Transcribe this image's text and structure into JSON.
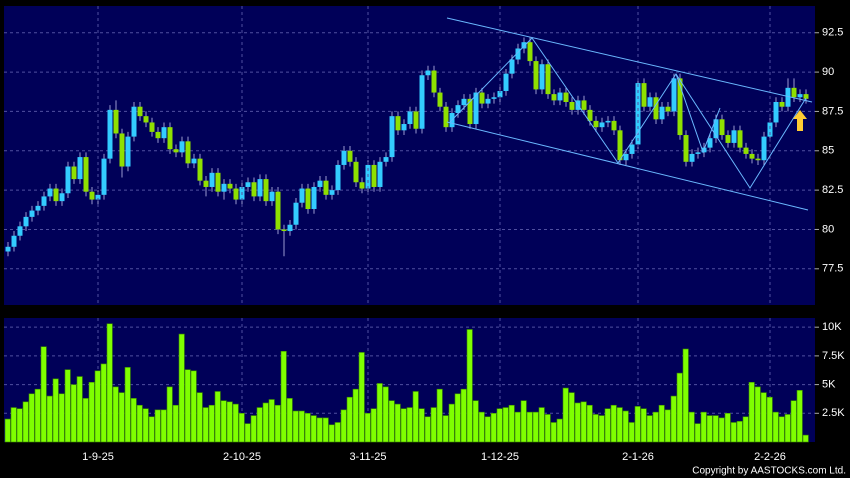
{
  "chart_data": [
    {
      "type": "candlestick",
      "up_color": "#33ccff",
      "down_color": "#8fe000",
      "open": [
        78.6,
        78.9,
        79.6,
        80.2,
        80.8,
        81.2,
        81.5,
        82.1,
        82.6,
        81.8,
        82.3,
        84.0,
        83.2,
        84.6,
        82.4,
        81.9,
        82.2,
        84.5,
        87.6,
        86.1,
        84.0,
        85.9,
        87.8,
        87.2,
        86.8,
        86.2,
        85.8,
        86.5,
        85.1,
        84.9,
        85.6,
        84.2,
        84.5,
        83.1,
        82.7,
        83.6,
        82.4,
        82.9,
        82.6,
        81.9,
        82.7,
        83.0,
        82.1,
        83.2,
        81.8,
        82.4,
        80.0,
        79.9,
        80.3,
        81.7,
        82.6,
        81.3,
        82.7,
        83.1,
        82.2,
        82.5,
        84.1,
        85.0,
        84.3,
        83.0,
        82.6,
        84.1,
        82.7,
        84.3,
        84.6,
        87.2,
        86.3,
        86.7,
        87.5,
        86.4,
        89.8,
        90.1,
        88.7,
        87.8,
        86.5,
        87.4,
        87.9,
        88.3,
        86.7,
        88.7,
        88.0,
        88.3,
        88.4,
        88.8,
        89.9,
        90.8,
        91.5,
        91.9,
        90.7,
        88.9,
        90.5,
        88.6,
        88.2,
        88.7,
        88.1,
        87.6,
        88.2,
        87.6,
        86.9,
        86.5,
        86.8,
        86.9,
        86.3,
        84.4,
        84.8,
        85.4,
        89.3,
        87.8,
        88.4,
        87.0,
        87.8,
        87.5,
        89.6,
        86.0,
        84.3,
        84.8,
        84.9,
        85.2,
        85.8,
        87.0,
        86.0,
        85.5,
        86.3,
        85.2,
        84.8,
        84.5,
        84.4,
        85.9,
        86.8,
        88.1,
        87.8,
        89.0,
        88.4,
        88.6
      ],
      "high": [
        79.2,
        79.9,
        80.5,
        81.1,
        81.5,
        81.8,
        82.4,
        82.9,
        82.9,
        82.6,
        84.3,
        84.3,
        84.9,
        84.9,
        82.7,
        82.5,
        84.8,
        87.9,
        88.2,
        86.4,
        86.2,
        88.1,
        88.1,
        87.5,
        87.1,
        86.5,
        86.8,
        86.8,
        85.4,
        85.9,
        85.9,
        84.8,
        84.8,
        83.4,
        83.9,
        83.9,
        83.2,
        83.2,
        82.9,
        83.0,
        83.3,
        83.3,
        83.5,
        83.5,
        82.7,
        82.7,
        80.3,
        80.6,
        82.0,
        82.9,
        82.9,
        83.0,
        83.4,
        83.4,
        82.8,
        84.4,
        85.3,
        85.3,
        84.6,
        83.3,
        84.4,
        84.4,
        84.6,
        84.9,
        87.5,
        87.5,
        87.0,
        87.8,
        87.8,
        90.1,
        90.4,
        90.4,
        89.0,
        88.1,
        87.7,
        88.2,
        88.6,
        88.6,
        89.0,
        89.0,
        88.6,
        88.7,
        89.1,
        90.2,
        91.1,
        91.8,
        92.2,
        92.2,
        91.0,
        90.8,
        90.8,
        88.9,
        89.0,
        89.0,
        88.4,
        88.5,
        88.5,
        87.9,
        87.2,
        87.1,
        87.2,
        87.2,
        86.6,
        85.1,
        85.7,
        89.6,
        89.6,
        88.7,
        88.7,
        88.1,
        88.1,
        89.9,
        89.9,
        86.3,
        85.1,
        85.2,
        85.5,
        86.1,
        87.3,
        87.3,
        86.3,
        86.6,
        86.6,
        85.5,
        85.1,
        84.8,
        86.2,
        87.1,
        88.4,
        88.4,
        89.6,
        89.6,
        88.9,
        88.9
      ],
      "low": [
        78.3,
        78.6,
        79.3,
        79.9,
        80.5,
        80.9,
        81.2,
        81.8,
        81.5,
        81.5,
        82.0,
        82.9,
        82.9,
        82.1,
        81.6,
        81.6,
        81.9,
        84.2,
        85.8,
        83.3,
        83.7,
        85.6,
        86.9,
        86.5,
        85.9,
        85.5,
        85.5,
        84.8,
        84.6,
        84.6,
        83.9,
        83.9,
        82.8,
        82.1,
        82.4,
        82.1,
        81.9,
        82.3,
        81.6,
        81.6,
        82.4,
        81.8,
        81.8,
        81.5,
        81.5,
        79.7,
        78.3,
        79.6,
        80.0,
        81.4,
        81.0,
        81.0,
        82.4,
        81.9,
        81.9,
        82.2,
        83.8,
        84.0,
        82.7,
        82.3,
        82.3,
        82.4,
        82.4,
        84.0,
        84.3,
        86.0,
        86.0,
        86.4,
        86.1,
        86.1,
        89.5,
        88.4,
        87.5,
        86.2,
        86.2,
        87.1,
        87.6,
        86.4,
        86.4,
        87.7,
        87.7,
        88.0,
        88.1,
        88.5,
        89.6,
        90.5,
        91.2,
        90.4,
        88.6,
        88.6,
        88.3,
        87.9,
        87.9,
        87.8,
        87.3,
        87.3,
        87.3,
        86.6,
        86.2,
        86.2,
        86.5,
        86.0,
        84.1,
        84.1,
        84.5,
        85.1,
        87.5,
        87.5,
        86.7,
        86.7,
        87.2,
        87.2,
        85.7,
        84.0,
        84.0,
        84.5,
        84.6,
        84.9,
        85.5,
        85.7,
        85.2,
        85.2,
        84.9,
        84.5,
        84.2,
        84.1,
        84.1,
        85.6,
        86.5,
        87.5,
        87.5,
        88.1,
        88.1,
        88.0
      ],
      "close": [
        78.9,
        79.6,
        80.2,
        80.8,
        81.2,
        81.5,
        82.1,
        82.6,
        81.8,
        82.3,
        84.0,
        83.2,
        84.6,
        82.4,
        81.9,
        82.2,
        84.5,
        87.6,
        86.1,
        84.0,
        85.9,
        87.8,
        87.2,
        86.8,
        86.2,
        85.8,
        86.5,
        85.1,
        84.9,
        85.6,
        84.2,
        84.5,
        83.1,
        82.7,
        83.6,
        82.4,
        82.9,
        82.6,
        81.9,
        82.7,
        83.0,
        82.1,
        83.2,
        81.8,
        82.4,
        80.0,
        79.9,
        80.3,
        81.7,
        82.6,
        81.3,
        82.7,
        83.1,
        82.2,
        82.5,
        84.1,
        85.0,
        84.3,
        83.0,
        82.6,
        84.1,
        82.7,
        84.3,
        84.6,
        87.2,
        86.3,
        86.7,
        87.5,
        86.4,
        89.8,
        90.1,
        88.7,
        87.8,
        86.5,
        87.4,
        87.9,
        88.3,
        86.7,
        88.7,
        88.0,
        88.3,
        88.4,
        88.8,
        89.9,
        90.8,
        91.5,
        91.9,
        90.7,
        88.9,
        90.5,
        88.6,
        88.2,
        88.7,
        88.1,
        87.6,
        88.2,
        87.6,
        86.9,
        86.5,
        86.8,
        86.9,
        86.3,
        84.4,
        84.8,
        85.4,
        89.3,
        87.8,
        88.4,
        87.0,
        87.8,
        87.5,
        89.6,
        86.0,
        84.3,
        84.8,
        84.9,
        85.2,
        85.8,
        87.0,
        86.0,
        85.5,
        86.3,
        85.2,
        84.8,
        84.5,
        84.4,
        85.9,
        86.8,
        88.1,
        87.8,
        89.0,
        88.4,
        88.6,
        88.3
      ],
      "ylim": [
        75.2,
        94.2
      ],
      "yticks": [
        77.5,
        80,
        82.5,
        85,
        87.5,
        90,
        92.5
      ],
      "grid": true
    },
    {
      "type": "bar",
      "color": "#7fff00",
      "categories": [
        null,
        null,
        null,
        null,
        null,
        null,
        null,
        null,
        null,
        null,
        null,
        null,
        null,
        null,
        null,
        "1-9-25",
        null,
        null,
        null,
        null,
        null,
        null,
        null,
        null,
        null,
        null,
        null,
        null,
        null,
        null,
        null,
        null,
        null,
        null,
        null,
        null,
        null,
        null,
        null,
        "2-10-25",
        null,
        null,
        null,
        null,
        null,
        null,
        null,
        null,
        null,
        null,
        null,
        null,
        null,
        null,
        null,
        null,
        null,
        null,
        null,
        null,
        "3-11-25",
        null,
        null,
        null,
        null,
        null,
        null,
        null,
        null,
        null,
        null,
        null,
        null,
        null,
        null,
        null,
        null,
        null,
        null,
        null,
        null,
        null,
        "1-12-25",
        null,
        null,
        null,
        null,
        null,
        null,
        null,
        null,
        null,
        null,
        null,
        null,
        null,
        null,
        null,
        null,
        null,
        null,
        null,
        null,
        null,
        null,
        "2-1-26",
        null,
        null,
        null,
        null,
        null,
        null,
        null,
        null,
        null,
        null,
        null,
        null,
        null,
        null,
        null,
        null,
        null,
        null,
        null,
        null,
        null,
        "2-2-26",
        null,
        null,
        null,
        null,
        null,
        null
      ],
      "values": [
        2000,
        3000,
        2900,
        3500,
        4200,
        4600,
        8300,
        4000,
        5500,
        4200,
        6300,
        5000,
        5700,
        3800,
        5200,
        6200,
        6800,
        10300,
        4800,
        4300,
        6500,
        3800,
        3200,
        2900,
        2200,
        2800,
        2800,
        4800,
        3200,
        9400,
        6300,
        6200,
        4300,
        3000,
        3200,
        4400,
        3600,
        3500,
        3300,
        2500,
        1600,
        2300,
        3000,
        3400,
        3700,
        3200,
        7900,
        3800,
        2700,
        2700,
        2500,
        2300,
        2100,
        2100,
        1500,
        1700,
        2800,
        3900,
        4600,
        7800,
        2500,
        2900,
        5100,
        4800,
        3600,
        3300,
        2900,
        3000,
        4400,
        2900,
        2200,
        3000,
        4600,
        2300,
        3300,
        4200,
        4600,
        9800,
        3600,
        2600,
        2200,
        2500,
        2900,
        3000,
        3200,
        2600,
        3600,
        2600,
        2600,
        3000,
        2400,
        1700,
        2000,
        4700,
        4300,
        3400,
        3500,
        3200,
        2400,
        2300,
        2900,
        3200,
        3000,
        2700,
        1700,
        3100,
        2900,
        2300,
        2600,
        3200,
        2800,
        4000,
        6000,
        8100,
        2600,
        1600,
        2600,
        2300,
        2300,
        2100,
        2500,
        1700,
        1800,
        2200,
        5200,
        4800,
        4300,
        3900,
        2600,
        2200,
        2400,
        3600,
        4500,
        600
      ],
      "ylim": [
        0,
        10800
      ],
      "yticks": [
        {
          "value": 2500,
          "label": "2.5K"
        },
        {
          "value": 5000,
          "label": "5K"
        },
        {
          "value": 7500,
          "label": "7.5K"
        },
        {
          "value": 10000,
          "label": "10K"
        }
      ],
      "grid": true
    }
  ],
  "copyright": "Copyright by AASTOCKS.com Ltd."
}
